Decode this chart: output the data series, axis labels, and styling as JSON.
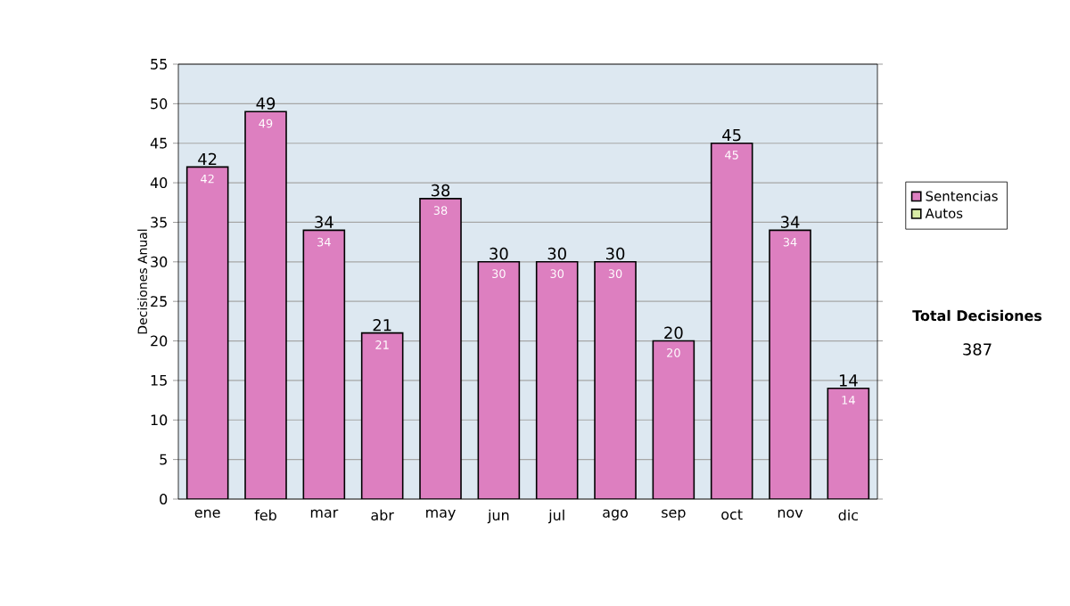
{
  "chart_data": {
    "type": "bar",
    "stacked": true,
    "ylabel": "Decisiones Anual",
    "categories": [
      "ene",
      "feb",
      "mar",
      "abr",
      "may",
      "jun",
      "jul",
      "ago",
      "sep",
      "oct",
      "nov",
      "dic"
    ],
    "series": [
      {
        "name": "Sentencias",
        "color": "#dd7fc0",
        "values": [
          42,
          49,
          34,
          21,
          38,
          30,
          30,
          30,
          20,
          45,
          34,
          14
        ],
        "value_labels": [
          "42",
          "49",
          "34",
          "21",
          "38",
          "30",
          "30",
          "30",
          "20",
          "45",
          "34",
          "14"
        ]
      },
      {
        "name": "Autos",
        "color": "#d9eba6",
        "values": [
          0,
          0,
          0,
          0,
          0,
          0,
          0,
          0,
          0,
          0,
          0,
          0
        ]
      }
    ],
    "totals": [
      "42",
      "49",
      "34",
      "21",
      "38",
      "30",
      "30",
      "30",
      "20",
      "45",
      "34",
      "14"
    ],
    "ylim": [
      0,
      55
    ],
    "yticks": [
      0,
      5,
      10,
      15,
      20,
      25,
      30,
      35,
      40,
      45,
      50,
      55
    ],
    "grid": "y",
    "legend": "right",
    "annotations": [
      "Total Decisiones",
      "387"
    ]
  }
}
